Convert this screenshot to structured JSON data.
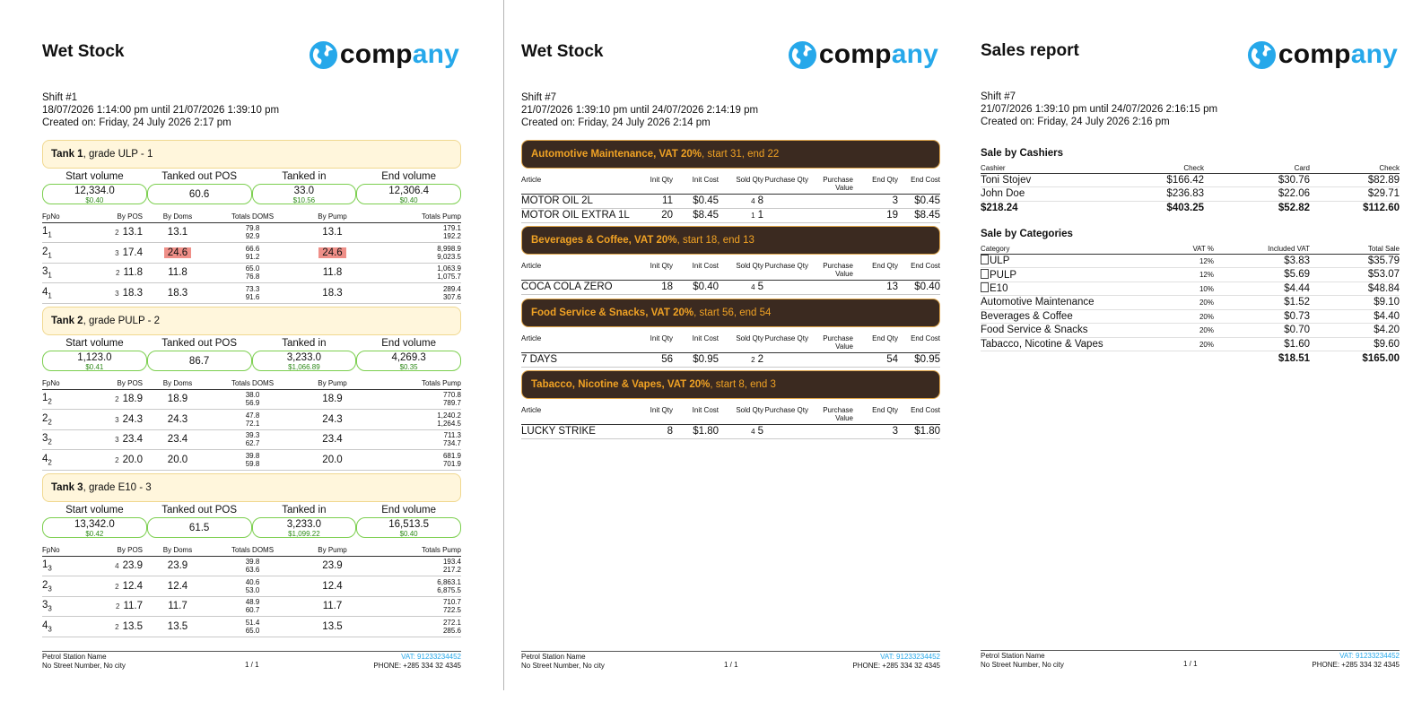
{
  "logo": {
    "text_a": "comp",
    "text_b": "any"
  },
  "footer": {
    "station_name": "Petrol Station Name",
    "address": "No Street Number, No city",
    "page": "1 / 1",
    "vat": "VAT: 91233234452",
    "phone": "PHONE: +285 334 32 4345"
  },
  "wet1": {
    "title": "Wet Stock",
    "shift": "Shift #1",
    "period": "18/07/2026 1:14:00 pm until 21/07/2026 1:39:10 pm",
    "created": "Created on: Friday, 24 July 2026 2:17 pm",
    "vol_labels": [
      "Start volume",
      "Tanked out POS",
      "Tanked in",
      "End volume"
    ],
    "pump_headers": [
      "FpNo",
      "By POS",
      "By Doms",
      "Totals DOMS",
      "By Pump",
      "Totals Pump"
    ],
    "tanks": [
      {
        "name": "Tank 1",
        "grade": ", grade ULP - 1",
        "start": "12,334.0",
        "start_sub": "$0.40",
        "out": "60.6",
        "in": "33.0",
        "in_sub": "$10.56",
        "end": "12,306.4",
        "end_sub": "$0.40",
        "rows": [
          {
            "fp": "1",
            "sub": "1",
            "n": "2",
            "pos": "13.1",
            "doms": "13.1",
            "td1": "79.8",
            "td2": "92.9",
            "pump": "13.1",
            "tp1": "179.1",
            "tp2": "192.2"
          },
          {
            "fp": "2",
            "sub": "1",
            "n": "3",
            "pos": "17.4",
            "doms": "24.6",
            "td1": "66.6",
            "td2": "91.2",
            "pump": "24.6",
            "tp1": "8,998.9",
            "tp2": "9,023.5"
          },
          {
            "fp": "3",
            "sub": "1",
            "n": "2",
            "pos": "11.8",
            "doms": "11.8",
            "td1": "65.0",
            "td2": "76.8",
            "pump": "11.8",
            "tp1": "1,063.9",
            "tp2": "1,075.7"
          },
          {
            "fp": "4",
            "sub": "1",
            "n": "3",
            "pos": "18.3",
            "doms": "18.3",
            "td1": "73.3",
            "td2": "91.6",
            "pump": "18.3",
            "tp1": "289.4",
            "tp2": "307.6"
          }
        ]
      },
      {
        "name": "Tank 2",
        "grade": ", grade PULP - 2",
        "start": "1,123.0",
        "start_sub": "$0.41",
        "out": "86.7",
        "in": "3,233.0",
        "in_sub": "$1,066.89",
        "end": "4,269.3",
        "end_sub": "$0.35",
        "rows": [
          {
            "fp": "1",
            "sub": "2",
            "n": "2",
            "pos": "18.9",
            "doms": "18.9",
            "td1": "38.0",
            "td2": "56.9",
            "pump": "18.9",
            "tp1": "770.8",
            "tp2": "789.7"
          },
          {
            "fp": "2",
            "sub": "2",
            "n": "3",
            "pos": "24.3",
            "doms": "24.3",
            "td1": "47.8",
            "td2": "72.1",
            "pump": "24.3",
            "tp1": "1,240.2",
            "tp2": "1,264.5"
          },
          {
            "fp": "3",
            "sub": "2",
            "n": "3",
            "pos": "23.4",
            "doms": "23.4",
            "td1": "39.3",
            "td2": "62.7",
            "pump": "23.4",
            "tp1": "711.3",
            "tp2": "734.7"
          },
          {
            "fp": "4",
            "sub": "2",
            "n": "2",
            "pos": "20.0",
            "doms": "20.0",
            "td1": "39.8",
            "td2": "59.8",
            "pump": "20.0",
            "tp1": "681.9",
            "tp2": "701.9"
          }
        ]
      },
      {
        "name": "Tank 3",
        "grade": ", grade E10 - 3",
        "start": "13,342.0",
        "start_sub": "$0.42",
        "out": "61.5",
        "in": "3,233.0",
        "in_sub": "$1,099.22",
        "end": "16,513.5",
        "end_sub": "$0.40",
        "rows": [
          {
            "fp": "1",
            "sub": "3",
            "n": "4",
            "pos": "23.9",
            "doms": "23.9",
            "td1": "39.8",
            "td2": "63.6",
            "pump": "23.9",
            "tp1": "193.4",
            "tp2": "217.2"
          },
          {
            "fp": "2",
            "sub": "3",
            "n": "2",
            "pos": "12.4",
            "doms": "12.4",
            "td1": "40.6",
            "td2": "53.0",
            "pump": "12.4",
            "tp1": "6,863.1",
            "tp2": "6,875.5"
          },
          {
            "fp": "3",
            "sub": "3",
            "n": "2",
            "pos": "11.7",
            "doms": "11.7",
            "td1": "48.9",
            "td2": "60.7",
            "pump": "11.7",
            "tp1": "710.7",
            "tp2": "722.5"
          },
          {
            "fp": "4",
            "sub": "3",
            "n": "2",
            "pos": "13.5",
            "doms": "13.5",
            "td1": "51.4",
            "td2": "65.0",
            "pump": "13.5",
            "tp1": "272.1",
            "tp2": "285.6"
          }
        ]
      }
    ]
  },
  "wet2": {
    "title": "Wet Stock",
    "shift": "Shift #7",
    "period": "21/07/2026 1:39:10 pm until 24/07/2026 2:14:19 pm",
    "created": "Created on: Friday, 24 July 2026 2:14 pm",
    "headers": [
      "Article",
      "Init Qty",
      "Init Cost",
      "Sold Qty",
      "Purchase Qty",
      "Purchase Value",
      "End Qty",
      "End Cost"
    ],
    "sections": [
      {
        "name": "Automotive Maintenance, VAT 20%",
        "rest": ", start 31, end 22",
        "rows": [
          {
            "article": "MOTOR OIL 2L",
            "init_qty": "11",
            "init_cost": "$0.45",
            "n": "4",
            "sold": "8",
            "pq": "",
            "pv": "",
            "end_qty": "3",
            "end_cost": "$0.45"
          },
          {
            "article": "MOTOR OIL EXTRA 1L",
            "init_qty": "20",
            "init_cost": "$8.45",
            "n": "1",
            "sold": "1",
            "pq": "",
            "pv": "",
            "end_qty": "19",
            "end_cost": "$8.45"
          }
        ]
      },
      {
        "name": "Beverages & Coffee, VAT 20%",
        "rest": ", start 18, end 13",
        "rows": [
          {
            "article": "COCA COLA ZERO",
            "init_qty": "18",
            "init_cost": "$0.40",
            "n": "4",
            "sold": "5",
            "pq": "",
            "pv": "",
            "end_qty": "13",
            "end_cost": "$0.40"
          }
        ]
      },
      {
        "name": "Food Service & Snacks, VAT 20%",
        "rest": ", start 56, end 54",
        "rows": [
          {
            "article": "7 DAYS",
            "init_qty": "56",
            "init_cost": "$0.95",
            "n": "2",
            "sold": "2",
            "pq": "",
            "pv": "",
            "end_qty": "54",
            "end_cost": "$0.95"
          }
        ]
      },
      {
        "name": "Tabacco, Nicotine & Vapes, VAT 20%",
        "rest": ", start 8, end 3",
        "rows": [
          {
            "article": "LUCKY STRIKE",
            "init_qty": "8",
            "init_cost": "$1.80",
            "n": "4",
            "sold": "5",
            "pq": "",
            "pv": "",
            "end_qty": "3",
            "end_cost": "$1.80"
          }
        ]
      }
    ]
  },
  "sales": {
    "title": "Sales report",
    "shift": "Shift #7",
    "period": "21/07/2026 1:39:10 pm until 24/07/2026 2:16:15 pm",
    "created": "Created on: Friday, 24 July 2026 2:16 pm",
    "cashiers_title": "Sale by Cashiers",
    "cashier_headers": [
      "Cashier",
      "Check",
      "Card",
      "Check"
    ],
    "cashiers": [
      [
        "Toni Stojev",
        "$166.42",
        "$30.76",
        "$82.89"
      ],
      [
        "John Doe",
        "$236.83",
        "$22.06",
        "$29.71"
      ]
    ],
    "cashier_total": [
      "$218.24",
      "$403.25",
      "$52.82",
      "$112.60"
    ],
    "categories_title": "Sale by Categories",
    "category_headers": [
      "Category",
      "VAT %",
      "Included VAT",
      "Total Sale"
    ],
    "categories": [
      {
        "name": "ULP",
        "icon": "fuel-icon",
        "vat": "12%",
        "inc": "$3.83",
        "total": "$35.79"
      },
      {
        "name": "PULP",
        "icon": "fuel-icon",
        "vat": "12%",
        "inc": "$5.69",
        "total": "$53.07"
      },
      {
        "name": "E10",
        "icon": "fuel-icon",
        "vat": "10%",
        "inc": "$4.44",
        "total": "$48.84"
      },
      {
        "name": "Automotive Maintenance",
        "icon": "",
        "vat": "20%",
        "inc": "$1.52",
        "total": "$9.10"
      },
      {
        "name": "Beverages & Coffee",
        "icon": "",
        "vat": "20%",
        "inc": "$0.73",
        "total": "$4.40"
      },
      {
        "name": "Food Service & Snacks",
        "icon": "",
        "vat": "20%",
        "inc": "$0.70",
        "total": "$4.20"
      },
      {
        "name": "Tabacco, Nicotine & Vapes",
        "icon": "",
        "vat": "20%",
        "inc": "$1.60",
        "total": "$9.60"
      }
    ],
    "category_total": [
      "$18.51",
      "$165.00"
    ]
  }
}
